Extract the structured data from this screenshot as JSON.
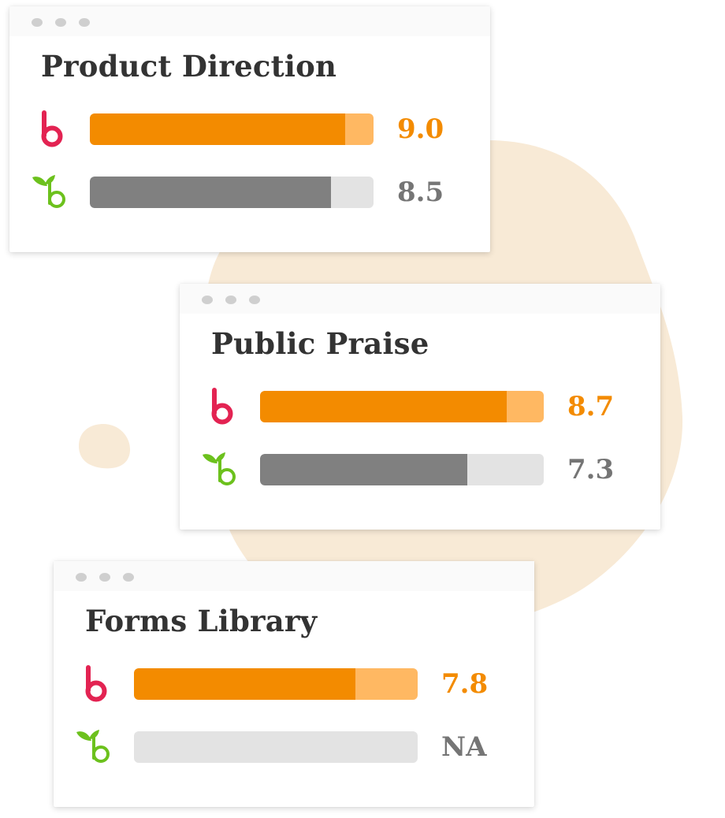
{
  "colors": {
    "bamboo_bar": "#f38b00",
    "bamboo_track": "#ffb862",
    "bamboo_score": "#f38b00",
    "bamboo_logo": "#e32352",
    "other_bar": "#808080",
    "other_track": "#e3e3e3",
    "other_score": "#757575",
    "other_logo": "#6cc11d",
    "blob": "#f8ead6"
  },
  "icons": {
    "bamboo": "bamboohr-b-logo-icon",
    "other": "leaf-b-logo-icon",
    "window_dots": "window-control-dots-icon"
  },
  "chart_data": [
    {
      "type": "bar",
      "title": "Product Direction",
      "xlim": [
        0,
        10
      ],
      "categories": [
        "bamboo-b",
        "leaf-b"
      ],
      "values": [
        9.0,
        8.5
      ],
      "labels": [
        "9.0",
        "8.5"
      ]
    },
    {
      "type": "bar",
      "title": "Public Praise",
      "xlim": [
        0,
        10
      ],
      "categories": [
        "bamboo-b",
        "leaf-b"
      ],
      "values": [
        8.7,
        7.3
      ],
      "labels": [
        "8.7",
        "7.3"
      ]
    },
    {
      "type": "bar",
      "title": "Forms Library",
      "xlim": [
        0,
        10
      ],
      "categories": [
        "bamboo-b",
        "leaf-b"
      ],
      "values": [
        7.8,
        null
      ],
      "labels": [
        "7.8",
        "NA"
      ]
    }
  ]
}
